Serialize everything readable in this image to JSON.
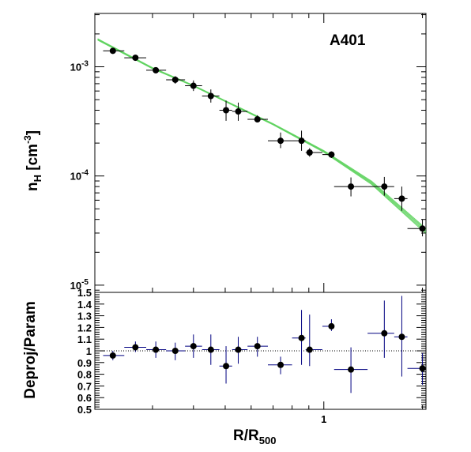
{
  "chart_data": [
    {
      "type": "scatter",
      "panel": "top",
      "title": "A401",
      "xlabel": "R/R500",
      "ylabel": "n_H [cm^-3]",
      "xscale": "log",
      "yscale": "log",
      "xlim": [
        0.2,
        2.05
      ],
      "ylim": [
        8.59e-06,
        0.00308
      ],
      "grid": false,
      "y_ticks": [
        {
          "value": 0.001,
          "base": "10",
          "exp": "-3"
        },
        {
          "value": 0.0001,
          "base": "10",
          "exp": "-4"
        },
        {
          "value": 1e-05,
          "base": "10",
          "exp": "-5"
        }
      ],
      "points": [
        {
          "x": 0.227,
          "xlo": 0.212,
          "xhi": 0.246,
          "y": 0.0014,
          "ylo": 0.00133,
          "yhi": 0.00147
        },
        {
          "x": 0.266,
          "xlo": 0.246,
          "xhi": 0.287,
          "y": 0.00121,
          "ylo": 0.00115,
          "yhi": 0.00127
        },
        {
          "x": 0.307,
          "xlo": 0.287,
          "xhi": 0.33,
          "y": 0.00093,
          "ylo": 0.00087,
          "yhi": 0.00099
        },
        {
          "x": 0.352,
          "xlo": 0.33,
          "xhi": 0.377,
          "y": 0.00076,
          "ylo": 0.0007,
          "yhi": 0.00082
        },
        {
          "x": 0.4,
          "xlo": 0.377,
          "xhi": 0.425,
          "y": 0.00067,
          "ylo": 0.0006,
          "yhi": 0.00075
        },
        {
          "x": 0.452,
          "xlo": 0.425,
          "xhi": 0.48,
          "y": 0.00054,
          "ylo": 0.00047,
          "yhi": 0.00062
        },
        {
          "x": 0.503,
          "xlo": 0.48,
          "xhi": 0.525,
          "y": 0.0004,
          "ylo": 0.00032,
          "yhi": 0.00049
        },
        {
          "x": 0.548,
          "xlo": 0.525,
          "xhi": 0.585,
          "y": 0.00039,
          "ylo": 0.00032,
          "yhi": 0.00047
        },
        {
          "x": 0.627,
          "xlo": 0.585,
          "xhi": 0.675,
          "y": 0.00033,
          "ylo": 0.00031,
          "yhi": 0.00036
        },
        {
          "x": 0.738,
          "xlo": 0.675,
          "xhi": 0.8,
          "y": 0.00021,
          "ylo": 0.00018,
          "yhi": 0.00025
        },
        {
          "x": 0.855,
          "xlo": 0.8,
          "xhi": 0.88,
          "y": 0.00021,
          "ylo": 0.00017,
          "yhi": 0.00026
        },
        {
          "x": 0.905,
          "xlo": 0.88,
          "xhi": 0.99,
          "y": 0.000164,
          "ylo": 0.00015,
          "yhi": 0.00018
        },
        {
          "x": 1.055,
          "xlo": 0.99,
          "xhi": 1.075,
          "y": 0.000157,
          "ylo": 0.000146,
          "yhi": 0.000168
        },
        {
          "x": 1.21,
          "xlo": 1.075,
          "xhi": 1.36,
          "y": 8e-05,
          "ylo": 6.5e-05,
          "yhi": 9.7e-05
        },
        {
          "x": 1.53,
          "xlo": 1.36,
          "xhi": 1.64,
          "y": 8e-05,
          "ylo": 6.6e-05,
          "yhi": 9.8e-05
        },
        {
          "x": 1.73,
          "xlo": 1.64,
          "xhi": 1.8,
          "y": 6.2e-05,
          "ylo": 4.8e-05,
          "yhi": 8e-05
        },
        {
          "x": 2.0,
          "xlo": 1.8,
          "xhi": 2.03,
          "y": 3.3e-05,
          "ylo": 2.8e-05,
          "yhi": 4e-05
        }
      ],
      "model_band": {
        "color": "#5fd35f",
        "x": [
          0.204,
          0.3,
          0.4,
          0.5,
          0.7,
          1.0,
          1.4,
          2.05
        ],
        "y": [
          0.00178,
          0.00097,
          0.00067,
          0.000485,
          0.000298,
          0.000168,
          8.65e-05,
          3.13e-05
        ],
        "y_spread": [
          0.015,
          0.012,
          0.01,
          0.01,
          0.012,
          0.018,
          0.035,
          0.055
        ]
      },
      "colors": {
        "points": "#000000",
        "band": "#5fd35f"
      }
    },
    {
      "type": "scatter",
      "panel": "bottom",
      "xlabel": "R/R500",
      "ylabel": "Deproj/Param",
      "xscale": "log",
      "yscale": "linear",
      "xlim": [
        0.2,
        2.05
      ],
      "ylim": [
        0.5,
        1.5
      ],
      "grid": false,
      "x_ticks": [
        {
          "value": 1.0,
          "label": "1"
        }
      ],
      "y_ticks": [
        {
          "value": 0.5,
          "label": "0.5"
        },
        {
          "value": 0.6,
          "label": "0.6"
        },
        {
          "value": 0.7,
          "label": "0.7"
        },
        {
          "value": 0.8,
          "label": "0.8"
        },
        {
          "value": 0.9,
          "label": "0.9"
        },
        {
          "value": 1.0,
          "label": "1"
        },
        {
          "value": 1.1,
          "label": "1.1"
        },
        {
          "value": 1.2,
          "label": "1.2"
        },
        {
          "value": 1.3,
          "label": "1.3"
        },
        {
          "value": 1.4,
          "label": "1.4"
        },
        {
          "value": 1.5,
          "label": "1.5"
        }
      ],
      "reference_line": 1.0,
      "points": [
        {
          "x": 0.227,
          "xlo": 0.212,
          "xhi": 0.246,
          "y": 0.96,
          "ylo": 0.92,
          "yhi": 1.0
        },
        {
          "x": 0.266,
          "xlo": 0.246,
          "xhi": 0.287,
          "y": 1.03,
          "ylo": 0.99,
          "yhi": 1.08
        },
        {
          "x": 0.307,
          "xlo": 0.287,
          "xhi": 0.33,
          "y": 1.01,
          "ylo": 0.94,
          "yhi": 1.08
        },
        {
          "x": 0.352,
          "xlo": 0.33,
          "xhi": 0.377,
          "y": 1.0,
          "ylo": 0.92,
          "yhi": 1.07
        },
        {
          "x": 0.4,
          "xlo": 0.377,
          "xhi": 0.425,
          "y": 1.04,
          "ylo": 0.94,
          "yhi": 1.14
        },
        {
          "x": 0.452,
          "xlo": 0.425,
          "xhi": 0.48,
          "y": 1.01,
          "ylo": 0.88,
          "yhi": 1.14
        },
        {
          "x": 0.503,
          "xlo": 0.48,
          "xhi": 0.525,
          "y": 0.87,
          "ylo": 0.72,
          "yhi": 1.04
        },
        {
          "x": 0.548,
          "xlo": 0.525,
          "xhi": 0.585,
          "y": 1.01,
          "ylo": 0.89,
          "yhi": 1.12
        },
        {
          "x": 0.627,
          "xlo": 0.585,
          "xhi": 0.675,
          "y": 1.04,
          "ylo": 0.95,
          "yhi": 1.12
        },
        {
          "x": 0.738,
          "xlo": 0.675,
          "xhi": 0.8,
          "y": 0.88,
          "ylo": 0.8,
          "yhi": 0.95
        },
        {
          "x": 0.855,
          "xlo": 0.8,
          "xhi": 0.88,
          "y": 1.11,
          "ylo": 0.88,
          "yhi": 1.35
        },
        {
          "x": 0.905,
          "xlo": 0.88,
          "xhi": 0.99,
          "y": 1.01,
          "ylo": 0.87,
          "yhi": 1.31
        },
        {
          "x": 1.055,
          "xlo": 0.99,
          "xhi": 1.075,
          "y": 1.21,
          "ylo": 1.17,
          "yhi": 1.27
        },
        {
          "x": 1.21,
          "xlo": 1.075,
          "xhi": 1.36,
          "y": 0.84,
          "ylo": 0.64,
          "yhi": 1.03
        },
        {
          "x": 1.53,
          "xlo": 1.36,
          "xhi": 1.64,
          "y": 1.15,
          "ylo": 0.94,
          "yhi": 1.43
        },
        {
          "x": 1.73,
          "xlo": 1.64,
          "xhi": 1.8,
          "y": 1.12,
          "ylo": 0.78,
          "yhi": 1.47
        },
        {
          "x": 2.0,
          "xlo": 1.8,
          "xhi": 2.03,
          "y": 0.85,
          "ylo": 0.71,
          "yhi": 0.98
        }
      ],
      "colors": {
        "points": "#000000",
        "errorbars": "#000080",
        "reference_line": "#000000"
      }
    }
  ]
}
